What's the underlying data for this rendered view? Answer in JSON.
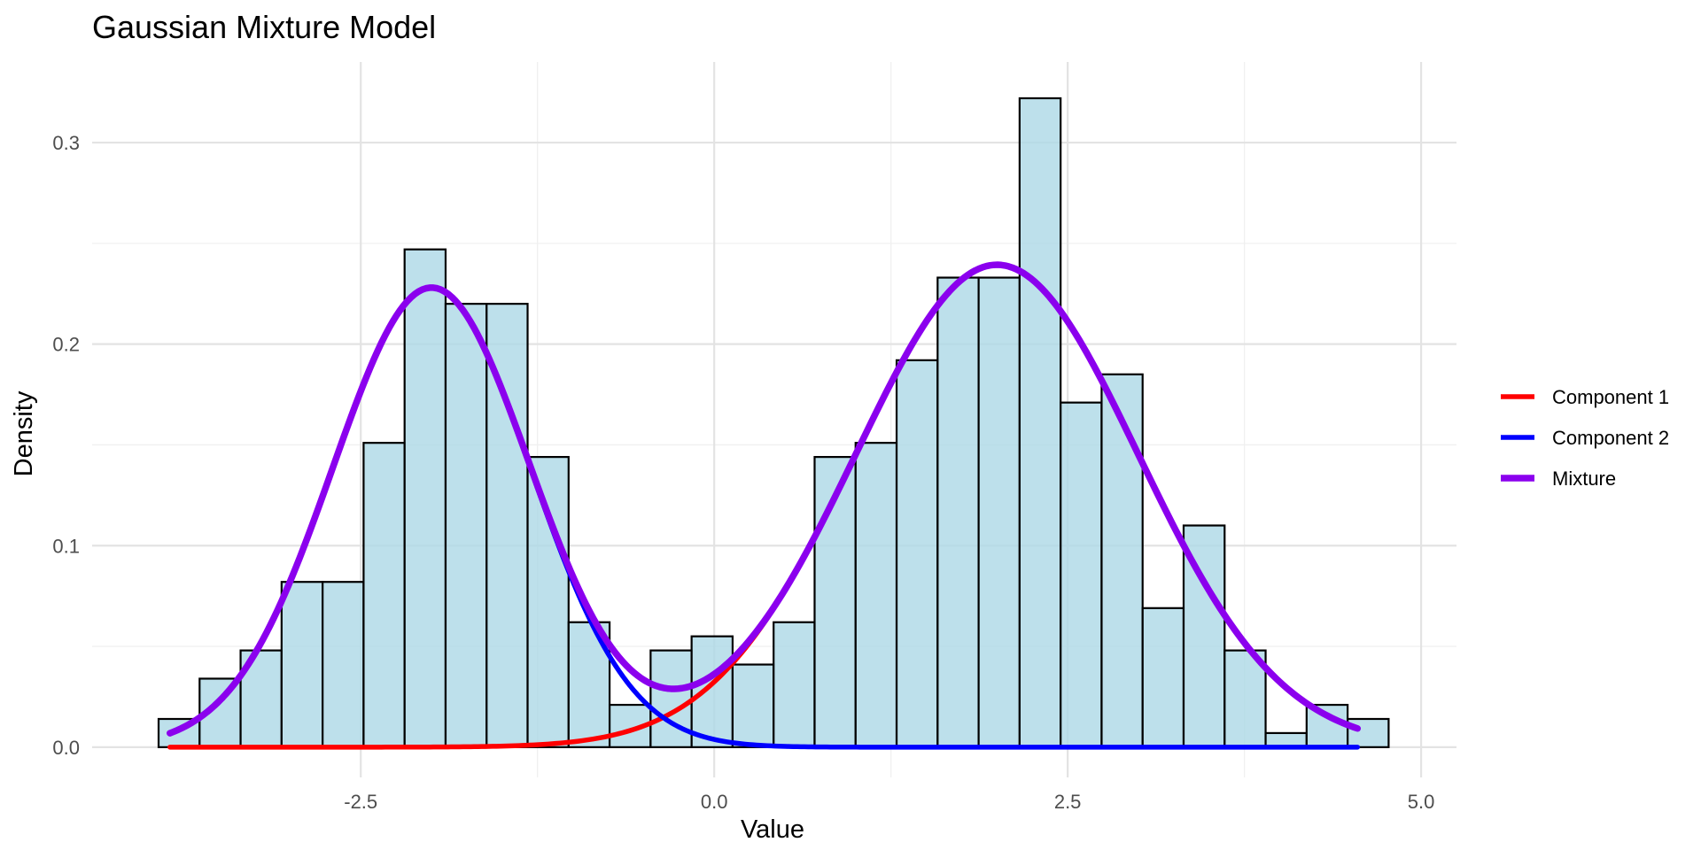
{
  "chart_data": {
    "type": "histogram",
    "title": "Gaussian Mixture Model",
    "xlabel": "Value",
    "ylabel": "Density",
    "xlim": [
      -4.4,
      5.25
    ],
    "ylim": [
      -0.015,
      0.34
    ],
    "x_ticks": [
      -2.5,
      0.0,
      2.5,
      5.0
    ],
    "x_tick_labels": [
      "-2.5",
      "0.0",
      "2.5",
      "5.0"
    ],
    "y_ticks": [
      0.0,
      0.1,
      0.2,
      0.3
    ],
    "y_tick_labels": [
      "0.0",
      "0.1",
      "0.2",
      "0.3"
    ],
    "grid": true,
    "legend_position": "right",
    "histogram": {
      "fill_color": "#add8e6",
      "border_color": "#000000",
      "bin_width": 0.29,
      "bin_start": -3.93,
      "density": [
        0.014,
        0.034,
        0.048,
        0.082,
        0.082,
        0.151,
        0.247,
        0.22,
        0.22,
        0.144,
        0.062,
        0.021,
        0.048,
        0.055,
        0.041,
        0.062,
        0.144,
        0.151,
        0.192,
        0.233,
        0.233,
        0.322,
        0.171,
        0.185,
        0.069,
        0.11,
        0.048,
        0.007,
        0.021,
        0.014
      ]
    },
    "series": [
      {
        "name": "Component 1",
        "color": "#ff0000",
        "weight": 0.6,
        "mean": 2.0,
        "sd": 1.0
      },
      {
        "name": "Component 2",
        "color": "#0000ff",
        "weight": 0.4,
        "mean": -2.0,
        "sd": 0.7
      },
      {
        "name": "Mixture",
        "color": "#8b00ee",
        "components": [
          "Component 1",
          "Component 2"
        ]
      }
    ],
    "curve_x_range": [
      -3.85,
      4.55
    ]
  }
}
